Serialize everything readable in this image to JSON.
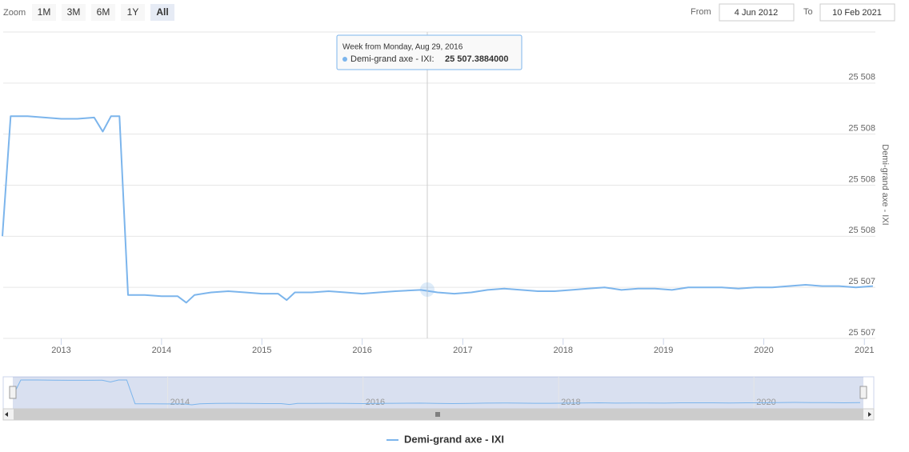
{
  "range_selector": {
    "zoom_label": "Zoom",
    "buttons": [
      "1M",
      "3M",
      "6M",
      "1Y",
      "All"
    ],
    "selected": "All",
    "from_label": "From",
    "from": "4 Jun 2012",
    "to_label": "To",
    "to": "10 Feb 2021"
  },
  "tooltip": {
    "header": "Week from Monday, Aug 29, 2016",
    "series": "Demi-grand axe - IXI:",
    "value": "25 507.3884000"
  },
  "chart_data": {
    "type": "line",
    "ylabel": "Demi-grand axe - IXI",
    "x": [
      "2012-06",
      "2012-07",
      "2012-09",
      "2012-11",
      "2013-01",
      "2013-03",
      "2013-05",
      "2013-06",
      "2013-07",
      "2013-08",
      "2013-09",
      "2013-11",
      "2014-01",
      "2014-03",
      "2014-04",
      "2014-05",
      "2014-07",
      "2014-09",
      "2014-11",
      "2015-01",
      "2015-03",
      "2015-04",
      "2015-05",
      "2015-07",
      "2015-09",
      "2015-11",
      "2016-01",
      "2016-03",
      "2016-05",
      "2016-08",
      "2016-10",
      "2016-12",
      "2017-02",
      "2017-04",
      "2017-06",
      "2017-08",
      "2017-10",
      "2017-12",
      "2018-02",
      "2018-04",
      "2018-06",
      "2018-08",
      "2018-10",
      "2018-12",
      "2019-02",
      "2019-04",
      "2019-06",
      "2019-08",
      "2019-10",
      "2019-12",
      "2020-02",
      "2020-04",
      "2020-06",
      "2020-08",
      "2020-10",
      "2020-12",
      "2021-02"
    ],
    "series": [
      {
        "name": "Demi-grand axe - IXI",
        "color": "#7cb5ec",
        "values": [
          25507.6,
          25508.07,
          25508.07,
          25508.065,
          25508.06,
          25508.06,
          25508.065,
          25508.01,
          25508.07,
          25508.07,
          25507.37,
          25507.37,
          25507.365,
          25507.365,
          25507.34,
          25507.37,
          25507.38,
          25507.385,
          25507.38,
          25507.375,
          25507.375,
          25507.35,
          25507.38,
          25507.38,
          25507.385,
          25507.38,
          25507.375,
          25507.38,
          25507.385,
          25507.39,
          25507.38,
          25507.375,
          25507.38,
          25507.39,
          25507.395,
          25507.39,
          25507.385,
          25507.385,
          25507.39,
          25507.395,
          25507.4,
          25507.39,
          25507.395,
          25507.395,
          25507.39,
          25507.4,
          25507.4,
          25507.4,
          25507.395,
          25507.4,
          25507.4,
          25507.405,
          25507.41,
          25507.405,
          25507.405,
          25507.4,
          25507.405
        ]
      }
    ],
    "xlim": [
      "2012-06-04",
      "2021-02-10"
    ],
    "xticks": [
      2013,
      2014,
      2015,
      2016,
      2017,
      2018,
      2019,
      2020,
      2021
    ],
    "navigator_xticks": [
      2014,
      2016,
      2018,
      2020
    ],
    "ylim": [
      25507.2,
      25508.4
    ],
    "yticks": [
      {
        "value": 25507.2,
        "label": "25 507"
      },
      {
        "value": 25507.4,
        "label": "25 507"
      },
      {
        "value": 25507.6,
        "label": "25 508"
      },
      {
        "value": 25507.8,
        "label": "25 508"
      },
      {
        "value": 25508.0,
        "label": "25 508"
      },
      {
        "value": 25508.2,
        "label": "25 508"
      }
    ],
    "grid": true,
    "legend": "bottom"
  }
}
